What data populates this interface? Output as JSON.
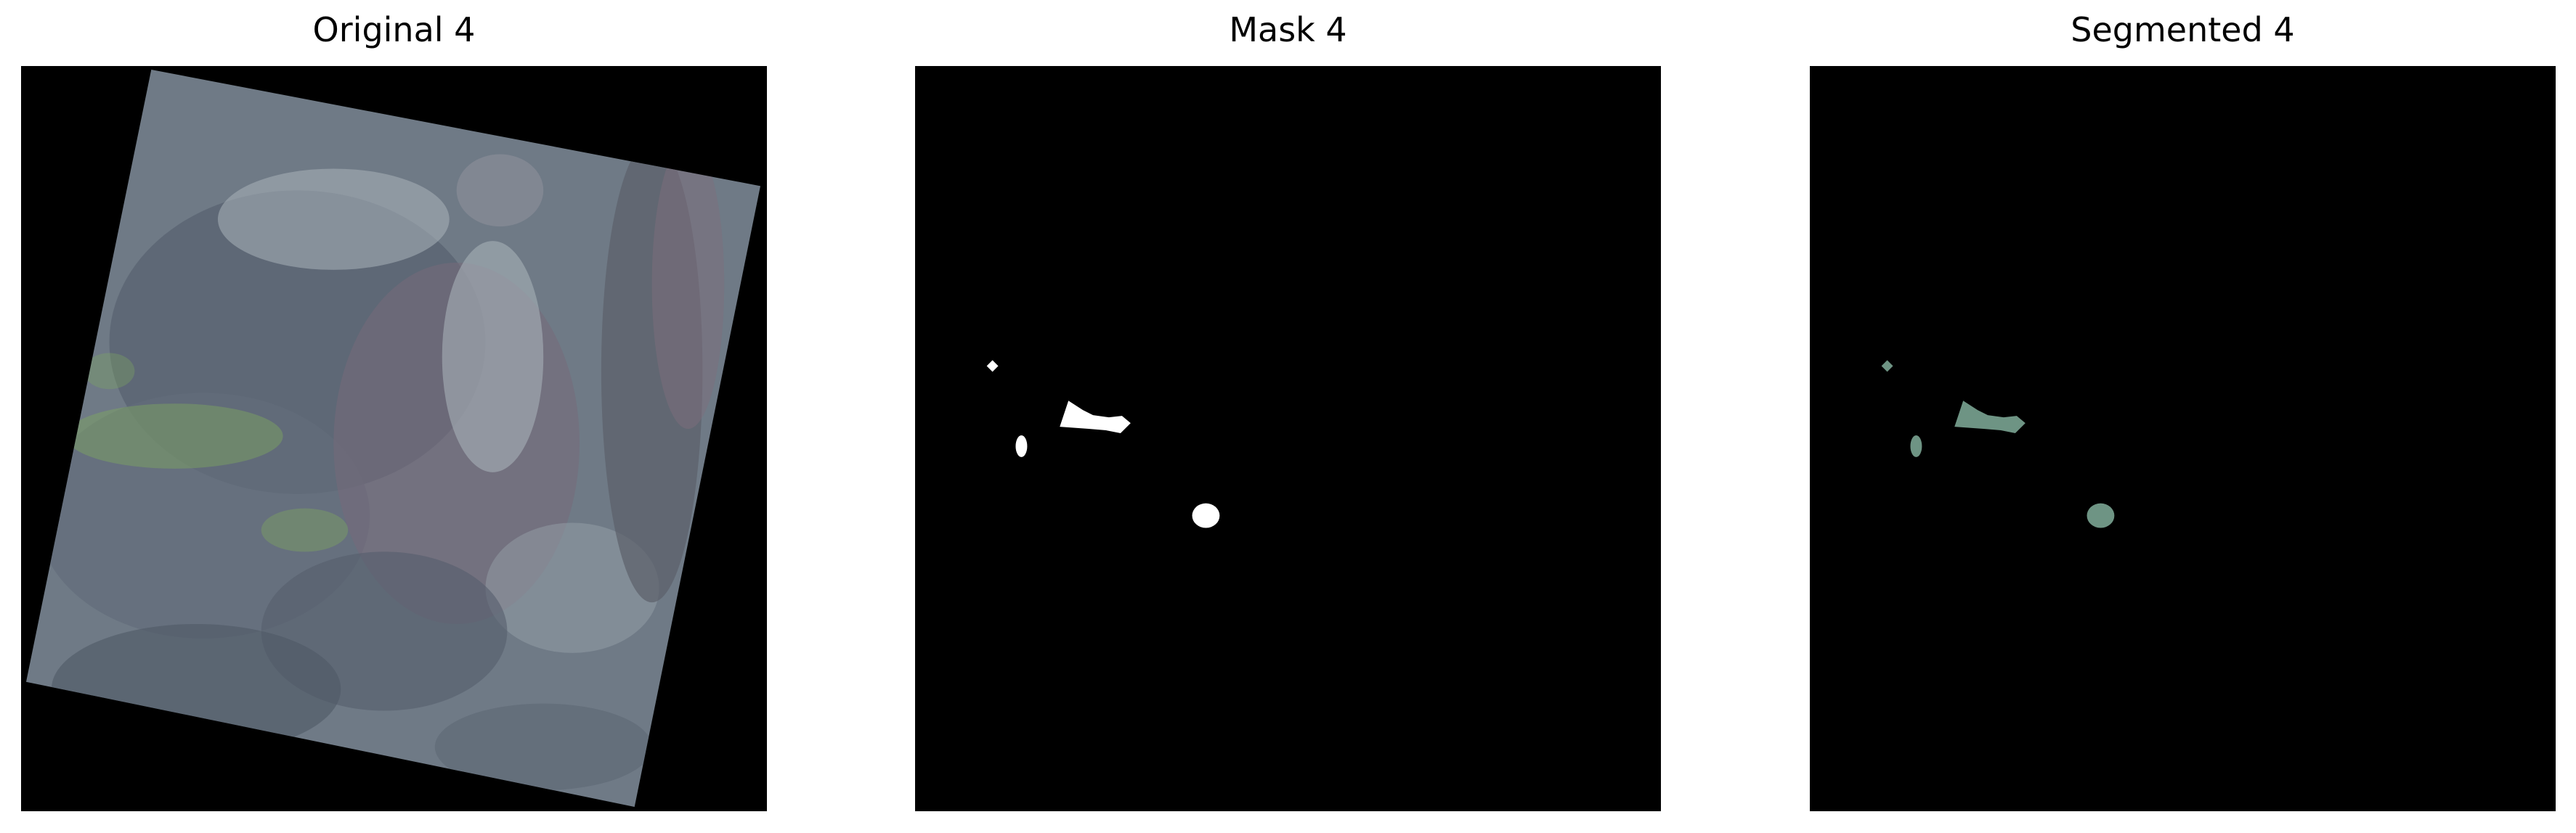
{
  "panels": [
    {
      "title": "Original 4",
      "image": "satellite-scene"
    },
    {
      "title": "Mask 4",
      "image": "binary-mask"
    },
    {
      "title": "Segmented 4",
      "image": "segmented-regions"
    }
  ],
  "colors": {
    "background": "#000000",
    "terrain_base": "#6f7a86",
    "terrain_dark": "#555e6c",
    "terrain_light": "#a9b2ba",
    "vegetation": "#7fa860",
    "mask_fill": "#ffffff",
    "segment_fill": "#6e9484"
  }
}
